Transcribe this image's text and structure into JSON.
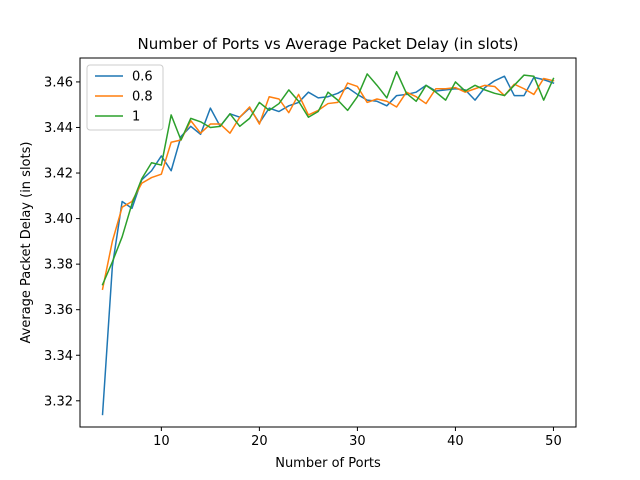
{
  "chart_data": {
    "type": "line",
    "title": "Number of Ports vs Average Packet Delay (in slots)",
    "xlabel": "Number of Ports",
    "ylabel": "Average Packet Delay (in slots)",
    "xlim": [
      1.7,
      52.3
    ],
    "ylim": [
      3.3085,
      3.4705
    ],
    "xticks": [
      10,
      20,
      30,
      40,
      50
    ],
    "yticks": [
      3.32,
      3.34,
      3.36,
      3.38,
      3.4,
      3.42,
      3.44,
      3.46
    ],
    "ytick_labels": [
      "3.32",
      "3.34",
      "3.36",
      "3.38",
      "3.40",
      "3.42",
      "3.44",
      "3.46"
    ],
    "grid": false,
    "legend_position": "top-left",
    "x": [
      4,
      5,
      6,
      7,
      8,
      9,
      10,
      11,
      12,
      13,
      14,
      15,
      16,
      17,
      18,
      19,
      20,
      21,
      22,
      23,
      24,
      25,
      26,
      27,
      28,
      29,
      30,
      31,
      32,
      33,
      34,
      35,
      36,
      37,
      38,
      39,
      40,
      41,
      42,
      43,
      44,
      45,
      46,
      47,
      48,
      49,
      50
    ],
    "series": [
      {
        "name": "0.6",
        "color": "#1f77b4",
        "values": [
          3.314,
          3.379,
          3.4075,
          3.4045,
          3.417,
          3.421,
          3.4275,
          3.421,
          3.436,
          3.4405,
          3.437,
          3.4485,
          3.4405,
          3.446,
          3.4445,
          3.4485,
          3.442,
          3.4485,
          3.447,
          3.4495,
          3.451,
          3.4555,
          3.453,
          3.4535,
          3.455,
          3.4575,
          3.4545,
          3.452,
          3.4515,
          3.4495,
          3.454,
          3.4545,
          3.4555,
          3.4585,
          3.456,
          3.4565,
          3.457,
          3.4565,
          3.452,
          3.4575,
          3.4605,
          3.4625,
          3.454,
          3.454,
          3.462,
          3.461,
          3.4595
        ]
      },
      {
        "name": "0.8",
        "color": "#ff7f0e",
        "values": [
          3.369,
          3.39,
          3.405,
          3.4075,
          3.4155,
          3.418,
          3.4195,
          3.4335,
          3.4345,
          3.443,
          3.4375,
          3.4415,
          3.4415,
          3.4375,
          3.4445,
          3.449,
          3.4415,
          3.4535,
          3.4525,
          3.4465,
          3.4545,
          3.4455,
          3.4475,
          3.4505,
          3.451,
          3.4595,
          3.458,
          3.451,
          3.4525,
          3.4515,
          3.449,
          3.4555,
          3.4535,
          3.4505,
          3.457,
          3.457,
          3.4575,
          3.4555,
          3.457,
          3.4585,
          3.458,
          3.454,
          3.459,
          3.457,
          3.4545,
          3.4615,
          3.4605
        ]
      },
      {
        "name": "1",
        "color": "#2ca02c",
        "values": [
          3.371,
          3.381,
          3.392,
          3.4065,
          3.4175,
          3.4245,
          3.4235,
          3.4455,
          3.4345,
          3.444,
          3.4425,
          3.44,
          3.4405,
          3.446,
          3.4405,
          3.444,
          3.451,
          3.4475,
          3.4505,
          3.4565,
          3.4515,
          3.4445,
          3.447,
          3.4555,
          3.452,
          3.4475,
          3.4535,
          3.4635,
          3.4585,
          3.453,
          3.4645,
          3.455,
          3.4515,
          3.4585,
          3.4555,
          3.452,
          3.46,
          3.456,
          3.4585,
          3.4565,
          3.455,
          3.454,
          3.4585,
          3.463,
          3.4625,
          3.452,
          3.4615
        ]
      }
    ]
  }
}
